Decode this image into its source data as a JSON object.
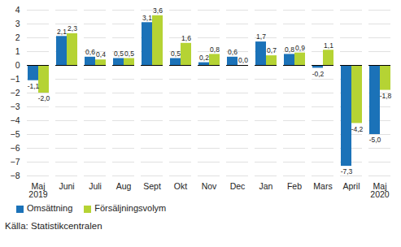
{
  "chart_data": {
    "type": "bar",
    "categories": [
      "Maj\n2019",
      "Juni",
      "Juli",
      "Aug",
      "Sept",
      "Okt",
      "Nov",
      "Dec",
      "Jan",
      "Feb",
      "Mars",
      "April",
      "Maj\n2020"
    ],
    "series": [
      {
        "name": "Omsättning",
        "color": "#1b72b8",
        "values": [
          -1.1,
          2.1,
          0.6,
          0.5,
          3.1,
          0.5,
          0.2,
          0.6,
          1.7,
          0.8,
          -0.2,
          -7.3,
          -5.0
        ],
        "value_labels": [
          "-1,1",
          "2,1",
          "0,6",
          "0,5",
          "3,1",
          "0,5",
          "0,2",
          "0,6",
          "1,7",
          "0,8",
          "-0,2",
          "-7,3",
          "-5,0"
        ]
      },
      {
        "name": "Försäljningsvolym",
        "color": "#b5d334",
        "values": [
          -2.0,
          2.3,
          0.4,
          0.5,
          3.6,
          1.6,
          0.8,
          0.0,
          0.7,
          0.9,
          1.1,
          -4.2,
          -1.8
        ],
        "value_labels": [
          "-2,0",
          "2,3",
          "0,4",
          "0,5",
          "3,6",
          "1,6",
          "0,8",
          "0,0",
          "0,7",
          "0,9",
          "1,1",
          "-4,2",
          "-1,8"
        ]
      }
    ],
    "ylim": [
      -8,
      4
    ],
    "yticks": [
      -8,
      -7,
      -6,
      -5,
      -4,
      -3,
      -2,
      -1,
      0,
      1,
      2,
      3,
      4
    ],
    "grid": true,
    "data_labels": true,
    "legend": "bottom",
    "caption": "Källa: Statistikcentralen"
  }
}
